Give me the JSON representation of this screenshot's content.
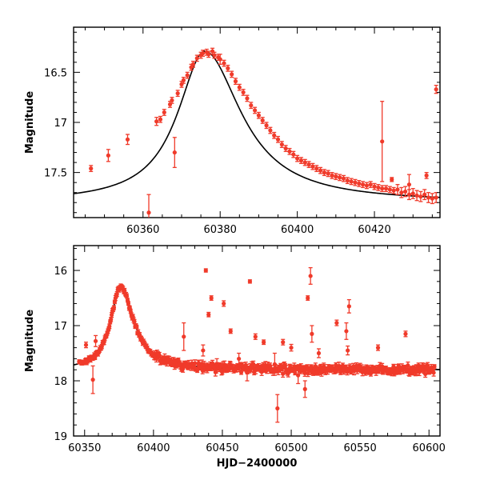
{
  "figure": {
    "point_color": "#f03a2a",
    "model_color": "#000000"
  },
  "chart_data": [
    {
      "type": "scatter",
      "xlabel": "",
      "ylabel": "Magnitude",
      "xlim": [
        60342,
        60437
      ],
      "ylim": [
        17.95,
        16.05
      ],
      "y_inverted": true,
      "x_ticks": [
        60360,
        60380,
        60400,
        60420
      ],
      "y_ticks": [
        16.5,
        17,
        17.5
      ],
      "x_tick_labels": [
        "60360",
        "60380",
        "60400",
        "60420"
      ],
      "y_tick_labels": [
        "16.5",
        "17",
        "17.5"
      ],
      "series": [
        {
          "kind": "observations",
          "x": [
            60346.5,
            60351,
            60356,
            60361.5,
            60363.5,
            60364.5,
            60365.5,
            60367,
            60367.5,
            60369,
            60370,
            60370.5,
            60371.5,
            60372.5,
            60373,
            60374,
            60375,
            60375.5,
            60376.5,
            60377,
            60378,
            60378.5,
            60379.5,
            60380,
            60381,
            60382,
            60383,
            60384,
            60385,
            60386,
            60387,
            60388,
            60389,
            60390,
            60391,
            60392,
            60393,
            60394,
            60395,
            60396,
            60397,
            60398,
            60399,
            60400,
            60401,
            60402,
            60403,
            60404,
            60405,
            60406,
            60407,
            60408,
            60409,
            60410,
            60411,
            60412,
            60413,
            60414,
            60415,
            60416,
            60417,
            60418,
            60419,
            60420,
            60421,
            60422,
            60423,
            60424,
            60425,
            60426,
            60427,
            60428,
            60429,
            60430,
            60431,
            60432,
            60433,
            60434,
            60435,
            60436
          ],
          "y": [
            17.46,
            17.33,
            17.17,
            17.9,
            16.99,
            16.97,
            16.9,
            16.82,
            16.78,
            16.71,
            16.62,
            16.58,
            16.53,
            16.45,
            16.42,
            16.36,
            16.33,
            16.31,
            16.3,
            16.32,
            16.29,
            16.33,
            16.35,
            16.37,
            16.41,
            16.46,
            16.52,
            16.59,
            16.65,
            16.7,
            16.76,
            16.83,
            16.88,
            16.93,
            16.98,
            17.03,
            17.08,
            17.13,
            17.17,
            17.22,
            17.26,
            17.29,
            17.32,
            17.36,
            17.38,
            17.4,
            17.42,
            17.44,
            17.46,
            17.48,
            17.5,
            17.51,
            17.53,
            17.54,
            17.55,
            17.56,
            17.58,
            17.59,
            17.6,
            17.61,
            17.62,
            17.63,
            17.62,
            17.64,
            17.65,
            17.66,
            17.66,
            17.67,
            17.68,
            17.67,
            17.7,
            17.69,
            17.72,
            17.71,
            17.73,
            17.74,
            17.72,
            17.75,
            17.76,
            17.75
          ],
          "err": [
            0.03,
            0.06,
            0.05,
            0.18,
            0.04,
            0.03,
            0.03,
            0.03,
            0.03,
            0.03,
            0.03,
            0.03,
            0.03,
            0.03,
            0.03,
            0.03,
            0.03,
            0.03,
            0.03,
            0.03,
            0.03,
            0.03,
            0.03,
            0.05,
            0.03,
            0.03,
            0.03,
            0.03,
            0.03,
            0.03,
            0.03,
            0.03,
            0.03,
            0.03,
            0.03,
            0.03,
            0.03,
            0.03,
            0.03,
            0.03,
            0.03,
            0.03,
            0.03,
            0.03,
            0.03,
            0.03,
            0.03,
            0.03,
            0.03,
            0.03,
            0.03,
            0.03,
            0.03,
            0.03,
            0.03,
            0.03,
            0.03,
            0.03,
            0.03,
            0.03,
            0.03,
            0.03,
            0.03,
            0.03,
            0.03,
            0.03,
            0.03,
            0.03,
            0.03,
            0.05,
            0.05,
            0.05,
            0.05,
            0.05,
            0.05,
            0.05,
            0.05,
            0.05,
            0.05,
            0.05
          ]
        },
        {
          "kind": "outliers",
          "x": [
            60368.2,
            60422,
            60424.5,
            60429,
            60433.5,
            60436
          ],
          "y": [
            17.3,
            17.19,
            17.57,
            17.62,
            17.53,
            16.67
          ],
          "err": [
            0.15,
            0.4,
            0.02,
            0.1,
            0.03,
            0.04
          ]
        },
        {
          "kind": "model",
          "peak_x": 60376,
          "peak_y": 16.29,
          "baseline_y": 17.8
        }
      ]
    },
    {
      "type": "scatter",
      "xlabel": "HJD−2400000",
      "ylabel": "Magnitude",
      "xlim": [
        60342,
        60608
      ],
      "ylim": [
        19.0,
        15.55
      ],
      "y_inverted": true,
      "x_ticks": [
        60350,
        60400,
        60450,
        60500,
        60550,
        60600
      ],
      "y_ticks": [
        16,
        17,
        18,
        19
      ],
      "x_tick_labels": [
        "60350",
        "60400",
        "60450",
        "60500",
        "60550",
        "60600"
      ],
      "y_tick_labels": [
        "16",
        "17",
        "18",
        "19"
      ],
      "series": [
        {
          "kind": "outliers",
          "x": [
            60351,
            60356,
            60358,
            60422,
            60436,
            60438,
            60440,
            60442,
            60446,
            60451,
            60456,
            60462,
            60468,
            60470,
            60474,
            60480,
            60488,
            60490,
            60494,
            60500,
            60505,
            60510,
            60512,
            60514,
            60515,
            60520,
            60533,
            60538,
            60540,
            60541,
            60542,
            60563,
            60583
          ],
          "y": [
            17.35,
            17.98,
            17.28,
            17.2,
            17.45,
            16.0,
            16.8,
            16.5,
            17.7,
            16.6,
            17.1,
            17.6,
            17.85,
            16.2,
            17.2,
            17.3,
            17.7,
            18.5,
            17.3,
            17.4,
            17.9,
            18.15,
            16.5,
            16.1,
            17.15,
            17.5,
            16.95,
            17.8,
            17.1,
            17.45,
            16.65,
            17.4,
            17.15
          ],
          "err": [
            0.05,
            0.25,
            0.1,
            0.25,
            0.1,
            0.03,
            0.04,
            0.04,
            0.1,
            0.05,
            0.04,
            0.1,
            0.15,
            0.03,
            0.05,
            0.04,
            0.2,
            0.25,
            0.05,
            0.06,
            0.15,
            0.15,
            0.04,
            0.15,
            0.15,
            0.08,
            0.05,
            0.08,
            0.15,
            0.08,
            0.12,
            0.05,
            0.05
          ]
        },
        {
          "kind": "model",
          "peak_x": 60376,
          "peak_y": 16.29,
          "baseline_y": 17.8
        }
      ]
    }
  ]
}
